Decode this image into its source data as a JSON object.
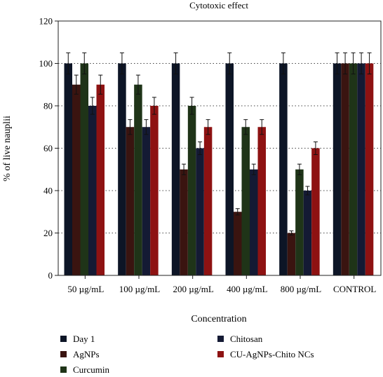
{
  "chart_data": {
    "type": "bar",
    "title": "Cytotoxic effect",
    "xlabel": "Concentration",
    "ylabel": "% of live nauplii",
    "ylim": [
      0,
      120
    ],
    "yticks": [
      0,
      20,
      40,
      60,
      80,
      100,
      120
    ],
    "grid": "horizontal dotted",
    "legend_position": "bottom",
    "categories": [
      "50 µg/mL",
      "100 µg/mL",
      "200 µg/mL",
      "400 µg/mL",
      "800 µg/mL",
      "CONTROL"
    ],
    "series": [
      {
        "name": "Day 1",
        "color": "#0d1526",
        "values": [
          100,
          100,
          100,
          100,
          100,
          100
        ],
        "errors": [
          5,
          5,
          5,
          5,
          5,
          5
        ]
      },
      {
        "name": "AgNPs",
        "color": "#3a1410",
        "values": [
          90,
          70,
          50,
          30,
          20,
          100
        ],
        "errors": [
          4.5,
          3.5,
          2.5,
          1.5,
          1,
          5
        ]
      },
      {
        "name": "Curcumin",
        "color": "#1f3418",
        "values": [
          100,
          90,
          80,
          70,
          50,
          100
        ],
        "errors": [
          5,
          4.5,
          4,
          3.5,
          2.5,
          5
        ]
      },
      {
        "name": "Chitosan",
        "color": "#141a34",
        "values": [
          80,
          70,
          60,
          50,
          40,
          100
        ],
        "errors": [
          4,
          3.5,
          3,
          2.5,
          2,
          5
        ]
      },
      {
        "name": "CU-AgNPs-Chito NCs",
        "color": "#8e1212",
        "values": [
          90,
          80,
          70,
          70,
          60,
          100
        ],
        "errors": [
          4.5,
          4,
          3.5,
          3.5,
          3,
          5
        ]
      }
    ]
  }
}
